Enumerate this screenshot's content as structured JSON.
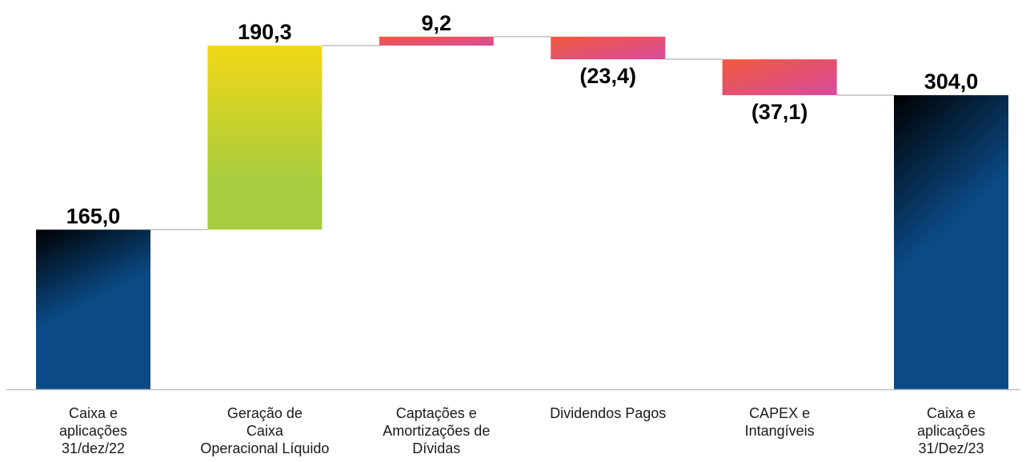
{
  "chart_data": {
    "type": "waterfall",
    "title": "",
    "xlabel": "",
    "ylabel": "",
    "ylim": [
      0,
      340
    ],
    "grid": false,
    "legend": "none",
    "categories": [
      [
        "Caixa e",
        "aplicações",
        "31/dez/22"
      ],
      [
        "Geração de",
        "Caixa",
        "Operacional Líquido"
      ],
      [
        "Captações e",
        "Amortizações de",
        "Dívidas"
      ],
      [
        "Dividendos Pagos"
      ],
      [
        "CAPEX e",
        "Intangíveis"
      ],
      [
        "Caixa e",
        "aplicações",
        "31/Dez/23"
      ]
    ],
    "values": [
      165.0,
      190.3,
      9.2,
      -23.4,
      -37.1,
      304.0
    ],
    "kinds": [
      "total",
      "increase",
      "increase",
      "decrease",
      "decrease",
      "total"
    ],
    "labels": [
      "165,0",
      "190,3",
      "9,2",
      "(23,4)",
      "(37,1)",
      "304,0"
    ],
    "colors": {
      "total_top": "#000000",
      "total_bottom": "#0b4a86",
      "increase_top": "#f2d816",
      "increase_bottom": "#a6cc3f",
      "delta_left": "#f05a3c",
      "delta_right": "#d94a9e",
      "connector": "#bfbfbf",
      "axis": "#bfbfbf"
    }
  }
}
